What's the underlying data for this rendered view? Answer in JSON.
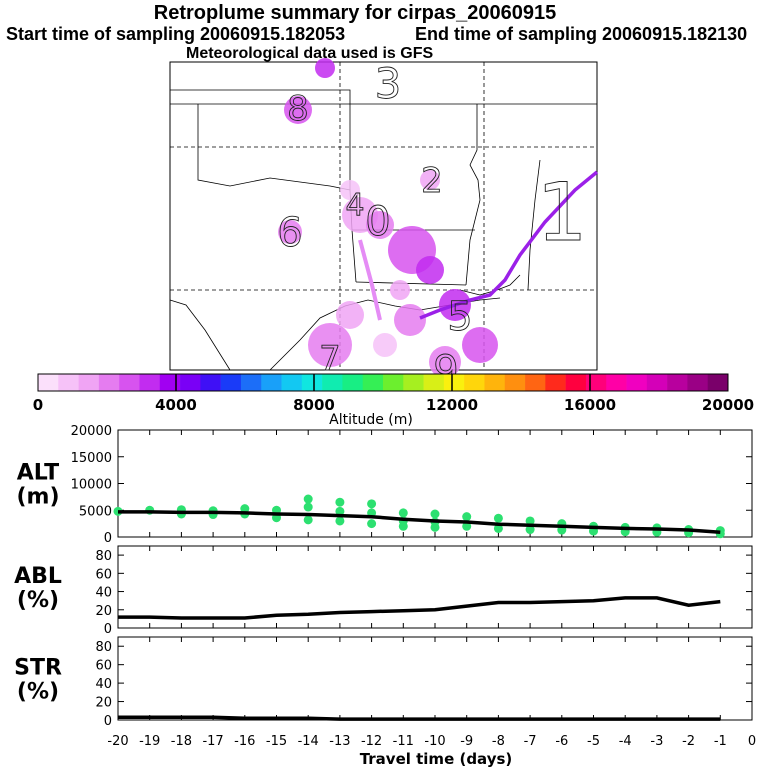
{
  "title": "Retroplume summary for cirpas_20060915",
  "start_label": "Start time of sampling 20060915.182053",
  "end_label": "End time of sampling 20060915.182130",
  "met_label": "Meteorological data used is GFS",
  "map": {
    "day_markers": [
      {
        "label": "3",
        "color": "#b020ff"
      },
      {
        "label": "8",
        "color": "#b020ff"
      },
      {
        "label": "2",
        "color": "#b020ff"
      },
      {
        "label": "1",
        "color": "#b020ff"
      },
      {
        "label": "6",
        "color": "#b020ff"
      },
      {
        "label": "0",
        "color": "#b020ff"
      },
      {
        "label": "4",
        "color": "#b020ff"
      },
      {
        "label": "5",
        "color": "#b020ff"
      },
      {
        "label": "9",
        "color": "#b020ff"
      },
      {
        "label": "7",
        "color": "#b020ff"
      }
    ]
  },
  "colorbar": {
    "label": "Altitude (m)",
    "ticks": [
      "0",
      "4000",
      "8000",
      "12000",
      "16000",
      "20000"
    ],
    "colors": [
      "#fbe0fb",
      "#f6c2f8",
      "#f0a4f4",
      "#e57cf0",
      "#d753ef",
      "#c22cf0",
      "#a100f2",
      "#7a00f6",
      "#3f10f6",
      "#1a3bf8",
      "#1c6ef8",
      "#19a0f9",
      "#13c8f2",
      "#10e6e0",
      "#10ecb0",
      "#18ee84",
      "#35ef55",
      "#6cef2e",
      "#a6ef20",
      "#d8ef17",
      "#faf00e",
      "#ffd60b",
      "#ffb40c",
      "#ff8f0f",
      "#ff6513",
      "#ff2a1c",
      "#ff003f",
      "#ff007a",
      "#ff00a6",
      "#f000c0",
      "#d400b8",
      "#b8009e",
      "#9a0085",
      "#7a006a"
    ]
  },
  "chart_data": [
    {
      "type": "scatter+line",
      "title": "ALT (m)",
      "ylabel": "ALT\n(m)",
      "ylim": [
        0,
        20000
      ],
      "yticks": [
        "0",
        "5000",
        "10000",
        "15000",
        "20000"
      ],
      "line": {
        "x": [
          -20,
          -19,
          -18,
          -17,
          -16,
          -15,
          -14,
          -13,
          -12,
          -11,
          -10,
          -9,
          -8,
          -7,
          -6,
          -5,
          -4,
          -3,
          -2,
          -1
        ],
        "y": [
          4700,
          4700,
          4600,
          4600,
          4500,
          4300,
          4200,
          4000,
          3800,
          3300,
          3000,
          2800,
          2400,
          2200,
          2000,
          1800,
          1600,
          1500,
          1300,
          900
        ]
      },
      "points_color": "#2ce070",
      "points": {
        "x": [
          -20,
          -19,
          -18,
          -18,
          -17,
          -17,
          -16,
          -16,
          -15,
          -15,
          -14,
          -14,
          -14,
          -13,
          -13,
          -13,
          -12,
          -12,
          -12,
          -11,
          -11,
          -11,
          -10,
          -10,
          -10,
          -9,
          -9,
          -8,
          -8,
          -7,
          -7,
          -6,
          -6,
          -5,
          -5,
          -4,
          -4,
          -3,
          -3,
          -2,
          -2,
          -1,
          -1
        ],
        "y": [
          4800,
          5000,
          5100,
          4300,
          4900,
          4200,
          5300,
          4300,
          5000,
          3600,
          7100,
          5600,
          3200,
          6500,
          4800,
          3000,
          6200,
          4500,
          2500,
          4500,
          3000,
          2000,
          4300,
          2800,
          1800,
          3800,
          2000,
          3500,
          1600,
          3000,
          1400,
          2500,
          1300,
          2000,
          1100,
          1800,
          1000,
          1700,
          900,
          1400,
          800,
          1200,
          600
        ]
      }
    },
    {
      "type": "line",
      "title": "ABL (%)",
      "ylabel": "ABL\n(%)",
      "ylim": [
        0,
        90
      ],
      "yticks": [
        "0",
        "20",
        "40",
        "60",
        "80"
      ],
      "line": {
        "x": [
          -20,
          -19,
          -18,
          -17,
          -16,
          -15,
          -14,
          -13,
          -12,
          -11,
          -10,
          -9,
          -8,
          -7,
          -6,
          -5,
          -4,
          -3,
          -2,
          -1
        ],
        "y": [
          12,
          12,
          11,
          11,
          11,
          14,
          15,
          17,
          18,
          19,
          20,
          24,
          28,
          28,
          29,
          30,
          33,
          33,
          25,
          29
        ]
      }
    },
    {
      "type": "line",
      "title": "STR (%)",
      "ylabel": "STR\n(%)",
      "ylim": [
        0,
        90
      ],
      "yticks": [
        "0",
        "20",
        "40",
        "60",
        "80"
      ],
      "line": {
        "x": [
          -20,
          -19,
          -18,
          -17,
          -16,
          -15,
          -14,
          -13,
          -12,
          -11,
          -10,
          -9,
          -8,
          -7,
          -6,
          -5,
          -4,
          -3,
          -2,
          -1
        ],
        "y": [
          3,
          3,
          3,
          3,
          2,
          2,
          2,
          1,
          1,
          1,
          1,
          1,
          1,
          1,
          1,
          1,
          1,
          1,
          1,
          1
        ]
      }
    }
  ],
  "xaxis": {
    "label": "Travel time (days)",
    "ticks": [
      "-20",
      "-19",
      "-18",
      "-17",
      "-16",
      "-15",
      "-14",
      "-13",
      "-12",
      "-11",
      "-10",
      "-9",
      "-8",
      "-7",
      "-6",
      "-5",
      "-4",
      "-3",
      "-2",
      "-1",
      "0"
    ],
    "xlim": [
      -20,
      0
    ]
  }
}
